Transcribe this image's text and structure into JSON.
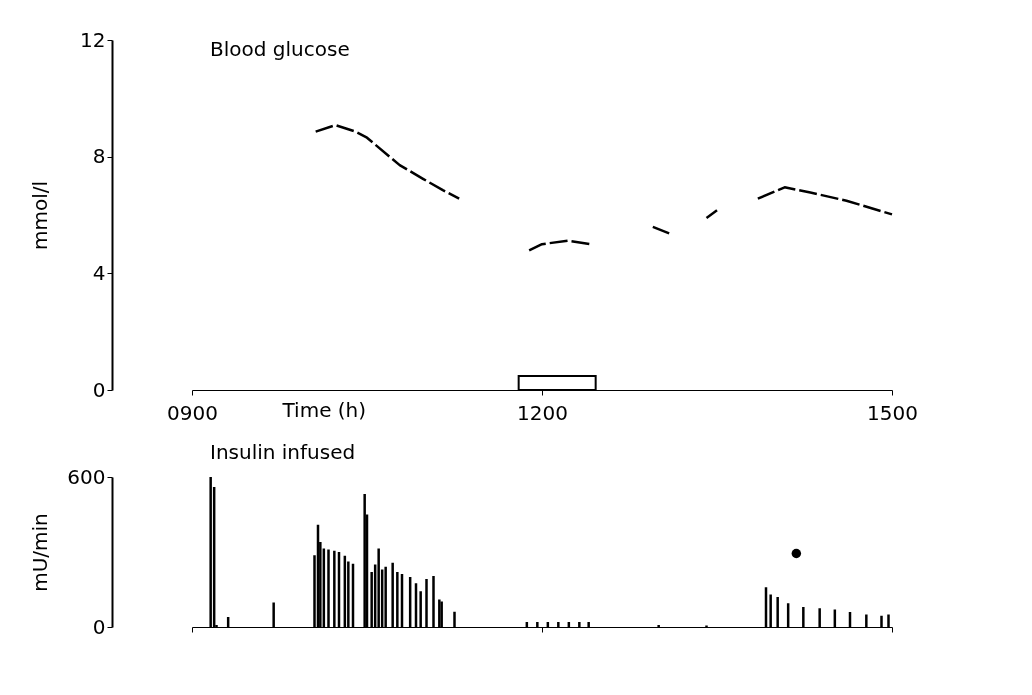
{
  "chart_data": [
    {
      "type": "line",
      "title": "Blood glucose",
      "xlabel": "Time (h)",
      "ylabel": "mmol/l",
      "xlim": [
        900,
        1500
      ],
      "xticks": [
        {
          "value": 900,
          "label": "0900"
        },
        1200,
        1500
      ],
      "ylim": [
        0,
        12
      ],
      "yticks": [
        0,
        4,
        8,
        12
      ],
      "grid": false,
      "line_style": "dashed",
      "bands": [
        {
          "axis": "x",
          "from": 1180,
          "to": 1246
        }
      ],
      "series": [
        {
          "color": "#000000",
          "x": [
            1006,
            1023,
            1040,
            1050,
            1078,
            1098,
            1115,
            1129
          ],
          "values": [
            8.86,
            9.08,
            8.86,
            8.65,
            7.71,
            7.24,
            6.85,
            6.56
          ]
        },
        {
          "color": "#000000",
          "x": [
            1189,
            1200,
            1222,
            1242
          ],
          "values": [
            4.79,
            5.0,
            5.12,
            5.0
          ]
        },
        {
          "color": "#000000",
          "x": [
            1295,
            1309
          ],
          "values": [
            5.59,
            5.37
          ]
        },
        {
          "color": "#000000",
          "x": [
            1341,
            1350
          ],
          "values": [
            5.9,
            6.16
          ]
        },
        {
          "color": "#000000",
          "x": [
            1385,
            1408,
            1430,
            1461,
            1500
          ],
          "values": [
            6.56,
            6.95,
            6.77,
            6.49,
            6.02
          ]
        }
      ]
    },
    {
      "type": "bar",
      "title": "Insulin infused",
      "ylabel": "mU/min",
      "xlim": [
        900,
        1500
      ],
      "xticks": [
        {
          "value": 900,
          "label": null
        },
        {
          "value": 1200,
          "label": null
        },
        {
          "value": 1500,
          "label": null
        }
      ],
      "ylim": [
        0,
        600
      ],
      "yticks": [
        0,
        600
      ],
      "tick_labels": "y",
      "grid": false,
      "series": [
        {
          "color": "#000000",
          "x": [
            916,
            919,
            921,
            931,
            970,
            1005,
            1008,
            1010,
            1013,
            1017,
            1022,
            1026,
            1031,
            1034,
            1038,
            1048,
            1050,
            1054,
            1057,
            1060,
            1063,
            1066,
            1072,
            1076,
            1080,
            1087,
            1092,
            1096,
            1101,
            1107,
            1112,
            1114,
            1125,
            1187,
            1196,
            1205,
            1214,
            1223,
            1232,
            1240,
            1300,
            1341,
            1392,
            1396,
            1402,
            1411,
            1424,
            1438,
            1451,
            1464,
            1478,
            1491,
            1497
          ],
          "values": [
            600,
            560,
            8,
            40,
            98,
            287,
            409,
            340,
            314,
            310,
            305,
            300,
            285,
            262,
            253,
            532,
            450,
            220,
            250,
            314,
            230,
            241,
            257,
            220,
            212,
            200,
            175,
            143,
            192,
            204,
            110,
            102,
            61,
            20,
            20,
            20,
            20,
            20,
            20,
            20,
            8,
            6,
            159,
            130,
            120,
            95,
            80,
            75,
            70,
            60,
            50,
            45,
            50
          ]
        },
        {
          "type": "scatter",
          "marker": "circle",
          "color": "#000000",
          "x": [
            1418
          ],
          "values": [
            294
          ]
        }
      ]
    }
  ]
}
